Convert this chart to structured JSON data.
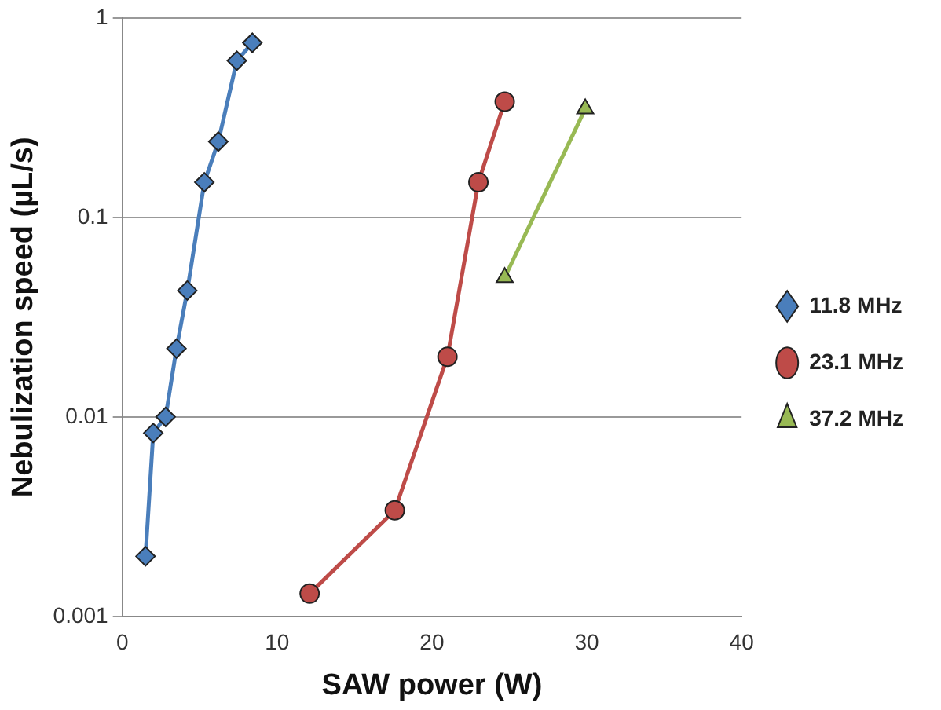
{
  "chart_data": {
    "type": "line",
    "xlabel": "SAW power (W)",
    "ylabel": "Nebulization speed (µL/s)",
    "log": "y",
    "grid": "y",
    "legend": "right",
    "line_style": "solid",
    "xlim": [
      0,
      40
    ],
    "xticks": [
      0,
      10,
      20,
      30,
      40
    ],
    "ylim": [
      0.001,
      1
    ],
    "yticks": [
      0.001,
      0.01,
      0.1,
      1
    ],
    "series": [
      {
        "name": "11.8 MHz",
        "color": "#4a7ebb",
        "marker": "diamond",
        "x": [
          1.5,
          2.0,
          2.8,
          3.5,
          4.2,
          5.3,
          6.2,
          7.4,
          8.4
        ],
        "values": [
          0.002,
          0.0083,
          0.01,
          0.022,
          0.043,
          0.15,
          0.24,
          0.61,
          0.75
        ]
      },
      {
        "name": "23.1 MHz",
        "color": "#be4b48",
        "marker": "circle",
        "x": [
          12.1,
          17.6,
          21.0,
          23.0,
          24.7
        ],
        "values": [
          0.0013,
          0.0034,
          0.02,
          0.15,
          0.38
        ]
      },
      {
        "name": "37.2 MHz",
        "color": "#98b954",
        "marker": "triangle",
        "x": [
          24.7,
          29.9
        ],
        "values": [
          0.05,
          0.35
        ]
      }
    ]
  }
}
